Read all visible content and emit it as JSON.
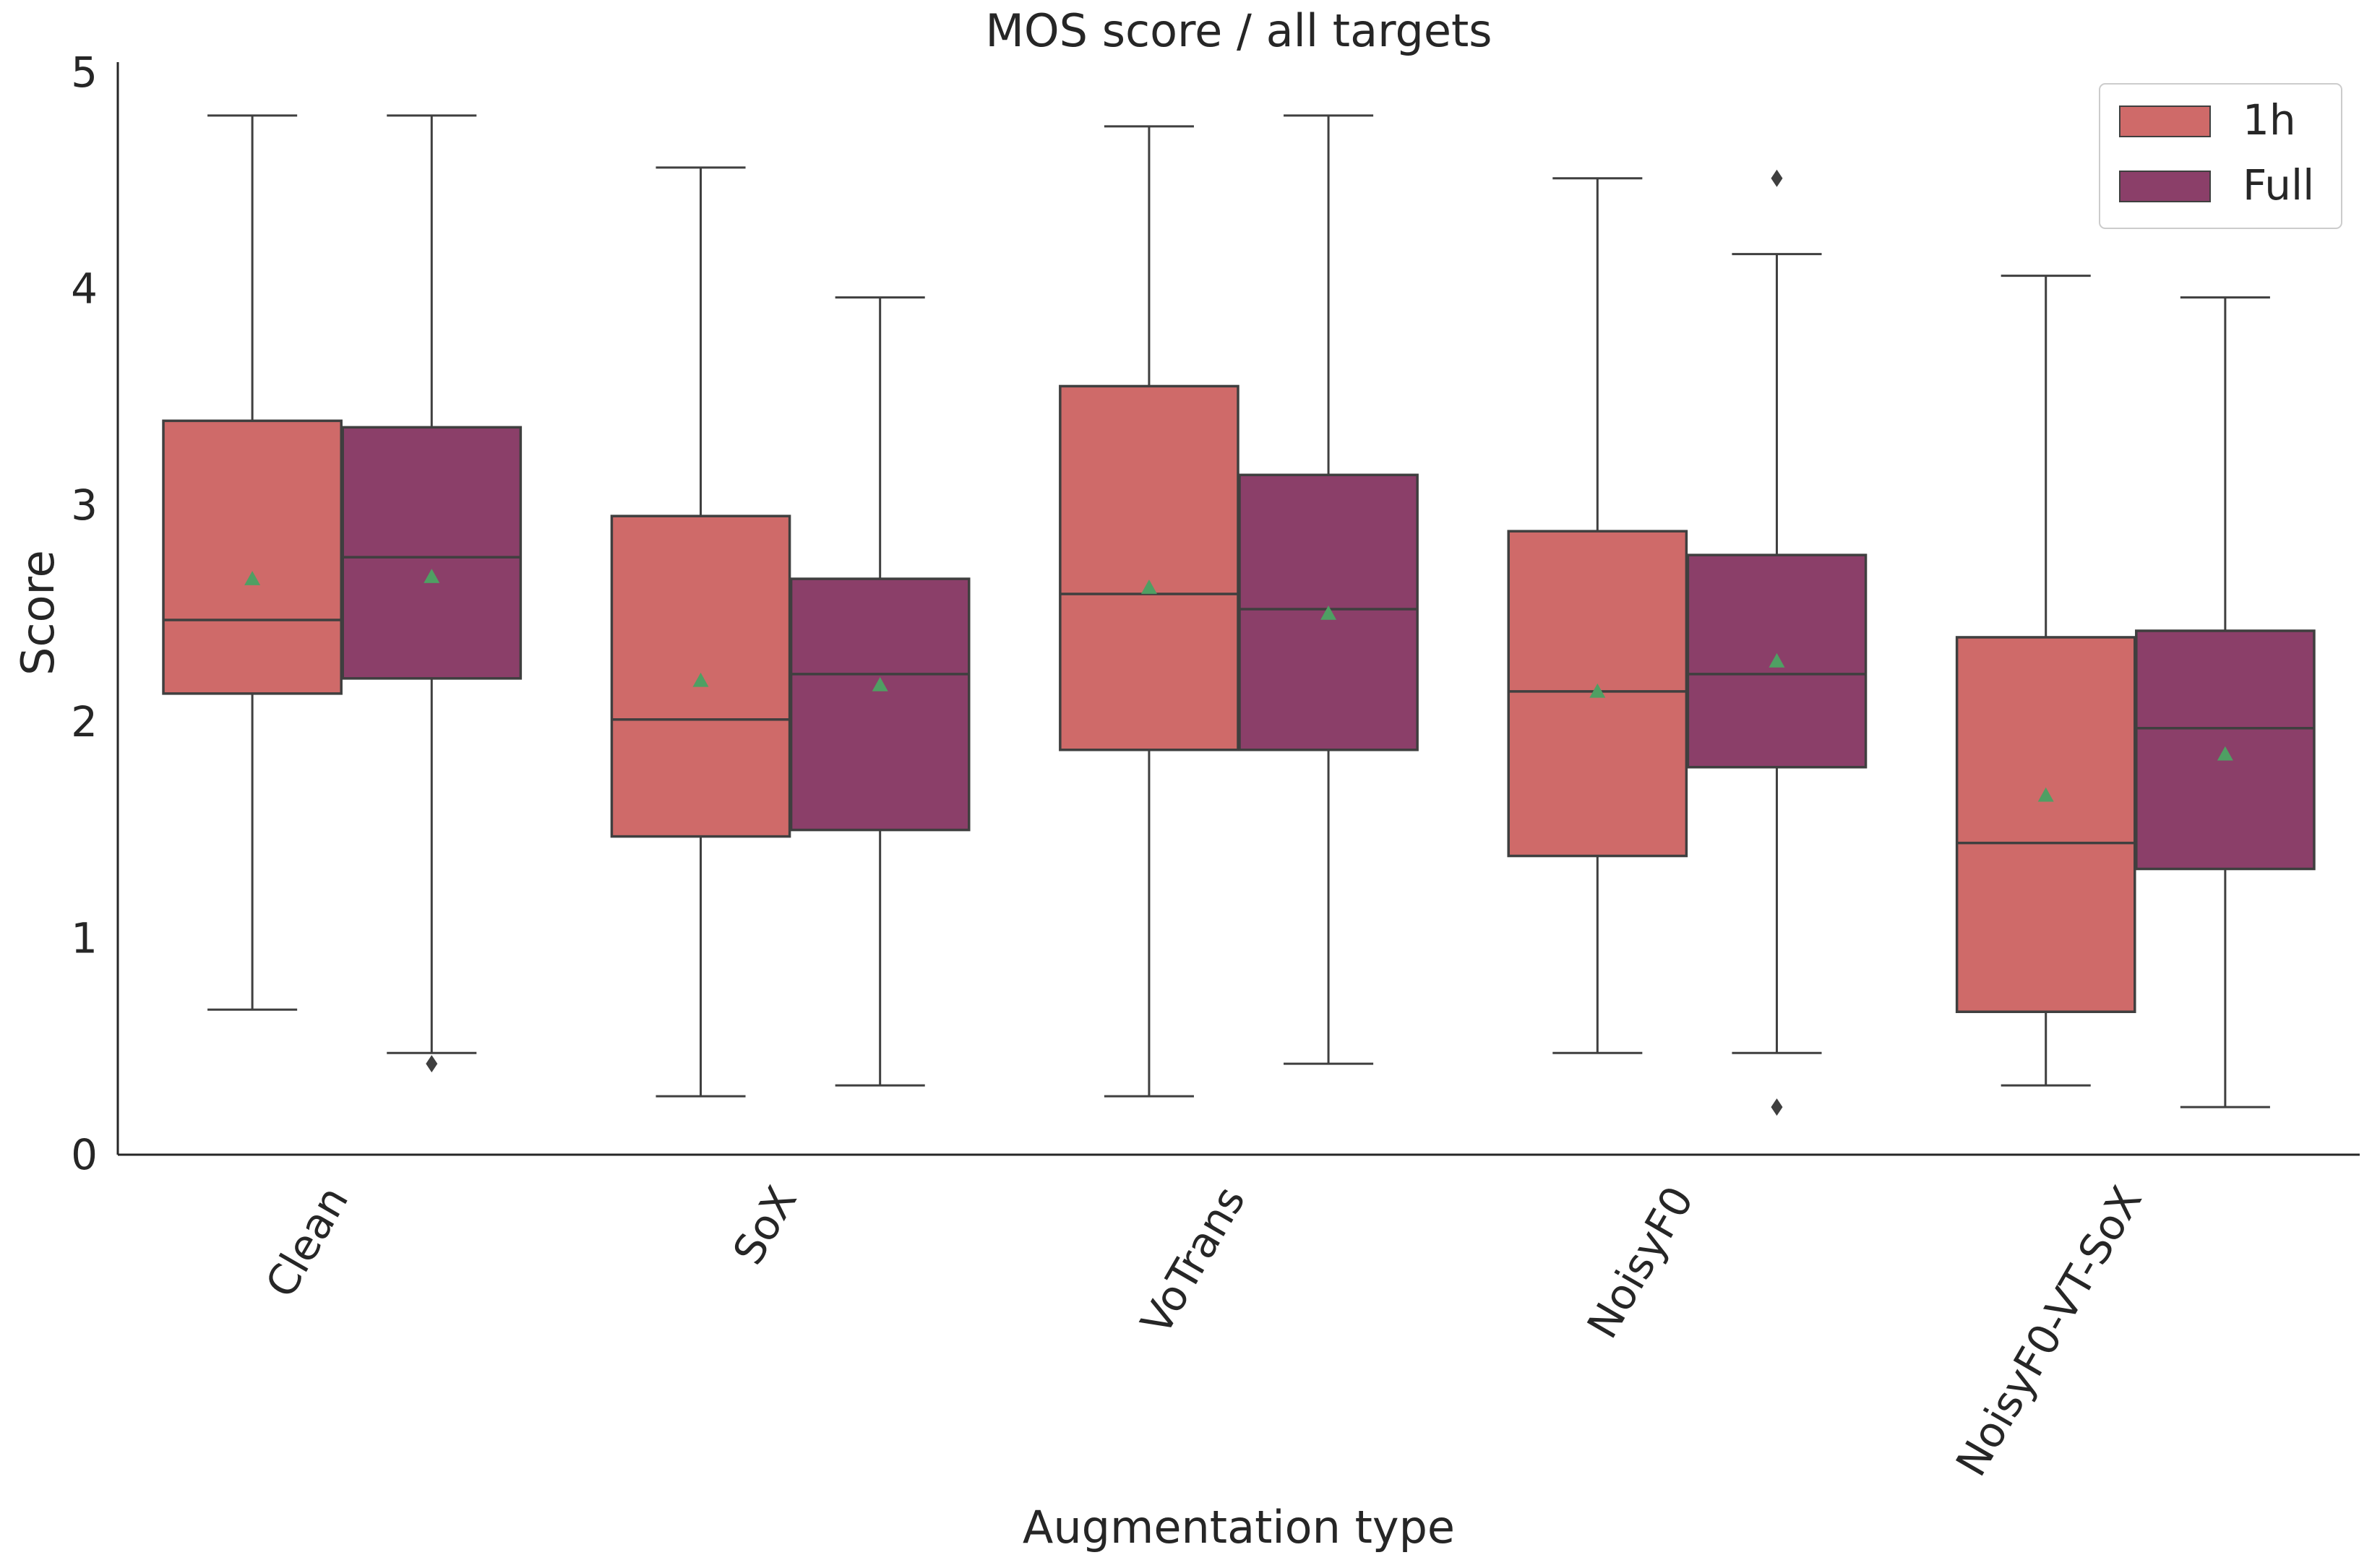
{
  "chart_data": {
    "type": "boxplot",
    "title": "MOS score / all targets",
    "xlabel": "Augmentation type",
    "ylabel": "Score",
    "ylim": [
      0,
      5
    ],
    "yticks": [
      "0",
      "1",
      "2",
      "3",
      "4",
      "5"
    ],
    "categories": [
      "Clean",
      "SoX",
      "VoTrans",
      "NoisyF0",
      "NoisyF0-VT-SoX"
    ],
    "legend": {
      "position": "top-right"
    },
    "mean_marker_color": "#4f9f63",
    "series": [
      {
        "name": "1h",
        "color": "#cf6a69",
        "stats": [
          {
            "whislo": 0.67,
            "q1": 2.13,
            "med": 2.47,
            "q3": 3.39,
            "whishi": 4.8,
            "mean": 2.66,
            "fliers": []
          },
          {
            "whislo": 0.27,
            "q1": 1.47,
            "med": 2.01,
            "q3": 2.95,
            "whishi": 4.56,
            "mean": 2.19,
            "fliers": []
          },
          {
            "whislo": 0.27,
            "q1": 1.87,
            "med": 2.59,
            "q3": 3.55,
            "whishi": 4.75,
            "mean": 2.62,
            "fliers": []
          },
          {
            "whislo": 0.47,
            "q1": 1.38,
            "med": 2.14,
            "q3": 2.88,
            "whishi": 4.51,
            "mean": 2.14,
            "fliers": []
          },
          {
            "whislo": 0.32,
            "q1": 0.66,
            "med": 1.44,
            "q3": 2.39,
            "whishi": 4.06,
            "mean": 1.66,
            "fliers": []
          }
        ]
      },
      {
        "name": "Full",
        "color": "#8b3f69",
        "stats": [
          {
            "whislo": 0.47,
            "q1": 2.2,
            "med": 2.76,
            "q3": 3.36,
            "whishi": 4.8,
            "mean": 2.67,
            "fliers": [
              0.42
            ]
          },
          {
            "whislo": 0.32,
            "q1": 1.5,
            "med": 2.22,
            "q3": 2.66,
            "whishi": 3.96,
            "mean": 2.17,
            "fliers": []
          },
          {
            "whislo": 0.42,
            "q1": 1.87,
            "med": 2.52,
            "q3": 3.14,
            "whishi": 4.8,
            "mean": 2.5,
            "fliers": []
          },
          {
            "whislo": 0.47,
            "q1": 1.79,
            "med": 2.22,
            "q3": 2.77,
            "whishi": 4.16,
            "mean": 2.28,
            "fliers": [
              4.51,
              0.22
            ]
          },
          {
            "whislo": 0.22,
            "q1": 1.32,
            "med": 1.97,
            "q3": 2.42,
            "whishi": 3.96,
            "mean": 1.85,
            "fliers": []
          }
        ]
      }
    ]
  }
}
